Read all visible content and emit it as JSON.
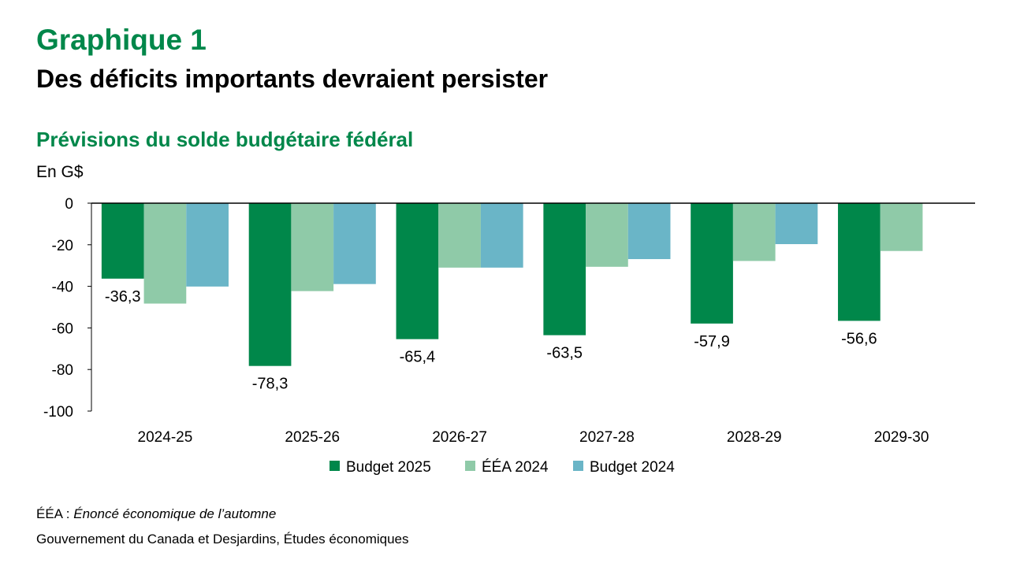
{
  "header": {
    "kicker": "Graphique 1",
    "title": "Des déficits importants devraient persister"
  },
  "chart_data": {
    "type": "bar",
    "title": "Prévisions du solde budgétaire fédéral",
    "ylabel": "En G$",
    "xlabel": "",
    "ylim": [
      -100,
      0
    ],
    "yticks": [
      0,
      -20,
      -40,
      -60,
      -80,
      -100
    ],
    "categories": [
      "2024-25",
      "2025-26",
      "2026-27",
      "2027-28",
      "2028-29",
      "2029-30"
    ],
    "series": [
      {
        "name": "Budget 2025",
        "color": "#00874a",
        "values": [
          -36.3,
          -78.3,
          -65.4,
          -63.5,
          -57.9,
          -56.6
        ],
        "labels": [
          "-36,3",
          "-78,3",
          "-65,4",
          "-63,5",
          "-57,9",
          "-56,6"
        ]
      },
      {
        "name": "ÉÉA 2024",
        "color": "#8fcaa8",
        "values": [
          -48.3,
          -42.3,
          -31.0,
          -30.6,
          -27.8,
          -23.0
        ]
      },
      {
        "name": "Budget 2024",
        "color": "#6ab5c7",
        "values": [
          -40.1,
          -38.9,
          -31.0,
          -26.9,
          -19.7,
          null
        ]
      }
    ],
    "legend": "bottom",
    "grid": false
  },
  "footer": {
    "note_prefix": "ÉÉA : ",
    "note_italic": "Énoncé économique de l’automne",
    "source": "Gouvernement du Canada et Desjardins, Études économiques"
  }
}
